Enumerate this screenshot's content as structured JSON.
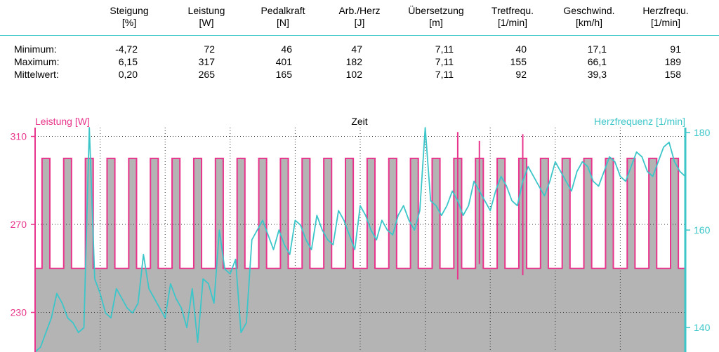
{
  "columns": [
    {
      "name": "Steigung",
      "unit": "[%]"
    },
    {
      "name": "Leistung",
      "unit": "[W]"
    },
    {
      "name": "Pedalkraft",
      "unit": "[N]"
    },
    {
      "name": "Arb./Herz",
      "unit": "[J]"
    },
    {
      "name": "Übersetzung",
      "unit": "[m]"
    },
    {
      "name": "Tretfrequ.",
      "unit": "[1/min]"
    },
    {
      "name": "Geschwind.",
      "unit": "[km/h]"
    },
    {
      "name": "Herzfrequ.",
      "unit": "[1/min]"
    }
  ],
  "rows": [
    {
      "label": "Minimum:",
      "values": [
        "-4,72",
        "72",
        "46",
        "47",
        "7,11",
        "40",
        "17,1",
        "91"
      ]
    },
    {
      "label": "Maximum:",
      "values": [
        "6,15",
        "317",
        "401",
        "182",
        "7,11",
        "155",
        "66,1",
        "189"
      ]
    },
    {
      "label": "Mittelwert:",
      "values": [
        "0,20",
        "265",
        "165",
        "102",
        "7,11",
        "92",
        "39,3",
        "158"
      ]
    }
  ],
  "chart_data": {
    "type": "line",
    "title": "Zeit",
    "left_axis": {
      "label": "Leistung [W]",
      "ticks": [
        230,
        270,
        310
      ],
      "range": [
        212,
        314
      ],
      "color": "#e8348c"
    },
    "right_axis": {
      "label": "Herzfrequenz [1/min]",
      "ticks": [
        140,
        160,
        180
      ],
      "range": [
        135,
        181
      ],
      "color": "#3cc6c9"
    },
    "grid": true,
    "series": [
      {
        "name": "Leistung [W]",
        "axis": "left",
        "color": "#e8348c",
        "fill": "#b4b4b4",
        "pattern": {
          "low": 250,
          "high": 300,
          "intervals": 30
        },
        "spikes": [
          {
            "interval": 19,
            "min": 245,
            "max": 312
          },
          {
            "interval": 20,
            "min": 252,
            "max": 308
          },
          {
            "interval": 22,
            "min": 247,
            "max": 311
          }
        ]
      },
      {
        "name": "Herzfrequenz [1/min]",
        "axis": "right",
        "color": "#3cc6c9",
        "x": [
          0,
          1,
          2,
          3,
          4,
          5,
          6,
          7,
          8,
          9,
          10,
          11,
          12,
          13,
          14,
          15,
          16,
          17,
          18,
          19,
          20,
          21,
          22,
          23,
          24,
          25,
          26,
          27,
          28,
          29,
          30,
          31,
          32,
          33,
          34,
          35,
          36,
          37,
          38,
          39,
          40,
          41,
          42,
          43,
          44,
          45,
          46,
          47,
          48,
          49,
          50,
          51,
          52,
          53,
          54,
          55,
          56,
          57,
          58,
          59,
          60,
          61,
          62,
          63,
          64,
          65,
          66,
          67,
          68,
          69,
          70,
          71,
          72,
          73,
          74,
          75,
          76,
          77,
          78,
          79,
          80,
          81,
          82,
          83,
          84,
          85,
          86,
          87,
          88,
          89,
          90,
          91,
          92,
          93,
          94,
          95,
          96,
          97,
          98,
          99,
          100,
          101,
          102,
          103,
          104,
          105,
          106,
          107,
          108,
          109,
          110,
          111,
          112,
          113,
          114,
          115,
          116,
          117,
          118,
          119,
          120
        ],
        "values": [
          134,
          136,
          139,
          142,
          147,
          145,
          142,
          141,
          139,
          140,
          181,
          150,
          147,
          143,
          142,
          148,
          146,
          144,
          143,
          145,
          155,
          148,
          146,
          144,
          142,
          149,
          146,
          144,
          140,
          148,
          137,
          150,
          149,
          145,
          160,
          152,
          151,
          154,
          139,
          141,
          158,
          160,
          162,
          159,
          156,
          160,
          157,
          155,
          162,
          161,
          158,
          156,
          163,
          160,
          158,
          157,
          164,
          162,
          159,
          156,
          165,
          163,
          160,
          158,
          162,
          160,
          159,
          163,
          165,
          162,
          160,
          164,
          181,
          166,
          165,
          163,
          165,
          168,
          166,
          163,
          165,
          170,
          168,
          166,
          164,
          168,
          171,
          169,
          166,
          165,
          170,
          173,
          171,
          169,
          167,
          170,
          174,
          172,
          170,
          168,
          172,
          174,
          173,
          170,
          169,
          172,
          175,
          174,
          171,
          170,
          173,
          176,
          175,
          172,
          171,
          174,
          177,
          178,
          174,
          172,
          171
        ]
      }
    ]
  }
}
